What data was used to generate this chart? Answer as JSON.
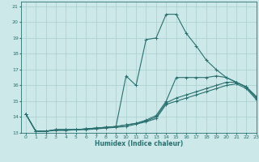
{
  "title": "",
  "xlabel": "Humidex (Indice chaleur)",
  "xlim": [
    -0.5,
    23
  ],
  "ylim": [
    13,
    21.3
  ],
  "yticks": [
    13,
    14,
    15,
    16,
    17,
    18,
    19,
    20,
    21
  ],
  "xticks": [
    0,
    1,
    2,
    3,
    4,
    5,
    6,
    7,
    8,
    9,
    10,
    11,
    12,
    13,
    14,
    15,
    16,
    17,
    18,
    19,
    20,
    21,
    22,
    23
  ],
  "bg_color": "#cce8e8",
  "grid_color": "#aacece",
  "line_color": "#2a7070",
  "lines": [
    {
      "x": [
        0,
        1,
        2,
        3,
        4,
        5,
        6,
        7,
        8,
        9,
        10,
        11,
        12,
        13,
        14,
        15,
        16,
        17,
        18,
        19,
        20,
        21,
        22,
        23
      ],
      "y": [
        14.2,
        13.1,
        13.1,
        13.2,
        13.2,
        13.2,
        13.25,
        13.3,
        13.35,
        13.4,
        16.6,
        16.0,
        18.9,
        19.0,
        20.5,
        20.5,
        19.3,
        18.5,
        17.6,
        17.0,
        16.5,
        16.2,
        15.9,
        15.2
      ]
    },
    {
      "x": [
        0,
        1,
        2,
        3,
        4,
        5,
        6,
        7,
        8,
        9,
        10,
        11,
        12,
        13,
        14,
        15,
        16,
        17,
        18,
        19,
        20,
        21,
        22,
        23
      ],
      "y": [
        14.2,
        13.1,
        13.1,
        13.2,
        13.2,
        13.2,
        13.25,
        13.3,
        13.35,
        13.4,
        13.5,
        13.6,
        13.8,
        14.1,
        15.0,
        16.5,
        16.5,
        16.5,
        16.5,
        16.6,
        16.5,
        16.2,
        15.9,
        15.3
      ]
    },
    {
      "x": [
        0,
        1,
        2,
        3,
        4,
        5,
        6,
        7,
        8,
        9,
        10,
        11,
        12,
        13,
        14,
        15,
        16,
        17,
        18,
        19,
        20,
        21,
        22,
        23
      ],
      "y": [
        14.2,
        13.1,
        13.1,
        13.2,
        13.2,
        13.2,
        13.25,
        13.3,
        13.35,
        13.4,
        13.5,
        13.6,
        13.75,
        14.0,
        14.9,
        15.2,
        15.4,
        15.6,
        15.8,
        16.0,
        16.2,
        16.2,
        15.9,
        15.2
      ]
    },
    {
      "x": [
        0,
        1,
        2,
        3,
        4,
        5,
        6,
        7,
        8,
        9,
        10,
        11,
        12,
        13,
        14,
        15,
        16,
        17,
        18,
        19,
        20,
        21,
        22,
        23
      ],
      "y": [
        14.2,
        13.1,
        13.1,
        13.15,
        13.15,
        13.2,
        13.2,
        13.25,
        13.3,
        13.35,
        13.4,
        13.55,
        13.7,
        13.9,
        14.8,
        15.0,
        15.2,
        15.4,
        15.6,
        15.8,
        16.0,
        16.1,
        15.8,
        15.1
      ]
    }
  ]
}
